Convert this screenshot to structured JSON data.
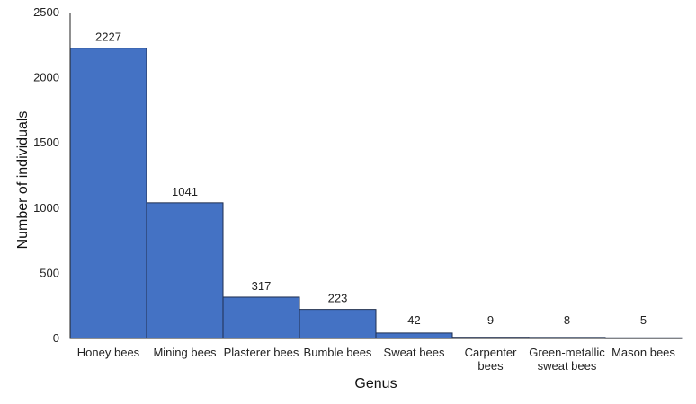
{
  "chart_data": {
    "type": "bar",
    "categories": [
      [
        "Honey bees"
      ],
      [
        "Mining bees"
      ],
      [
        "Plasterer bees"
      ],
      [
        "Bumble bees"
      ],
      [
        "Sweat bees"
      ],
      [
        "Carpenter",
        "bees"
      ],
      [
        "Green-metallic",
        "sweat bees"
      ],
      [
        "Mason bees"
      ]
    ],
    "values": [
      2227,
      1041,
      317,
      223,
      42,
      9,
      8,
      5
    ],
    "data_labels": [
      "2227",
      "1041",
      "317",
      "223",
      "42",
      "9",
      "8",
      "5"
    ],
    "xlabel": "Genus",
    "ylabel": "Number of individuals",
    "ylim": [
      0,
      2500
    ],
    "yticks": [
      0,
      500,
      1000,
      1500,
      2000,
      2500
    ],
    "grid": false,
    "bar_color": "#4472c4",
    "bar_edge_color": "#1f2f4f"
  }
}
